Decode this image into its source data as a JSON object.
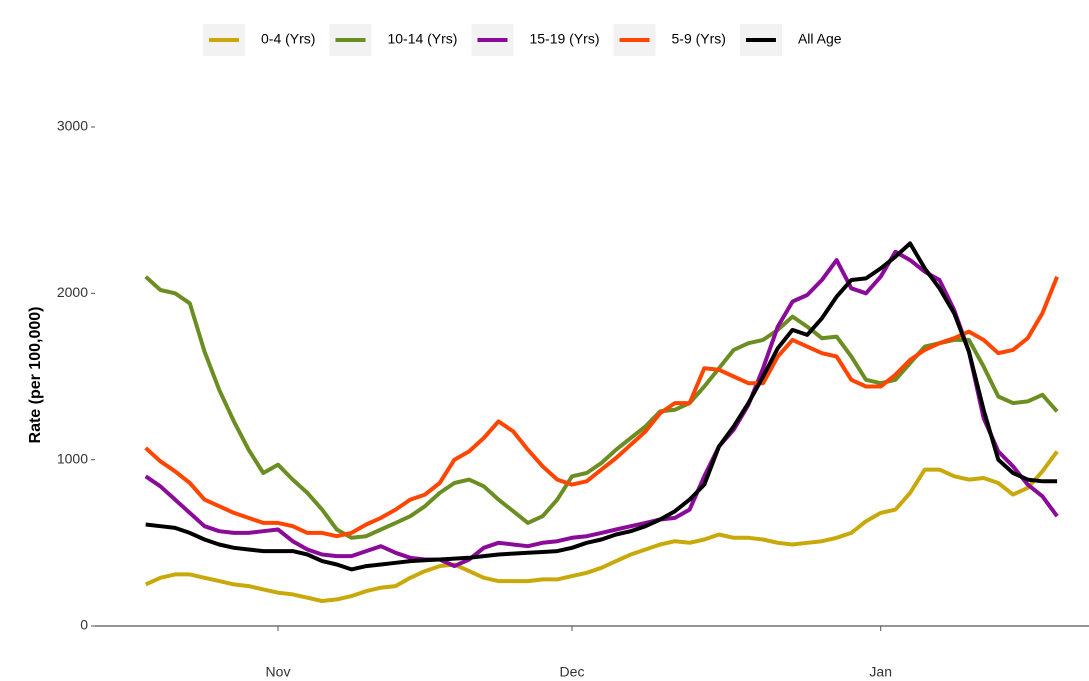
{
  "chart_data": {
    "type": "line",
    "y_label": "Rate (per 100,000)",
    "categories": [
      null,
      null,
      null,
      null,
      null,
      null,
      null,
      null,
      null,
      "Nov",
      null,
      null,
      null,
      null,
      null,
      null,
      null,
      null,
      null,
      null,
      null,
      null,
      null,
      null,
      null,
      null,
      null,
      null,
      null,
      "Dec",
      null,
      null,
      null,
      null,
      null,
      null,
      null,
      null,
      null,
      null,
      null,
      null,
      null,
      null,
      null,
      null,
      null,
      null,
      null,
      null,
      "Jan",
      null,
      null,
      null,
      null,
      null,
      null,
      null,
      null,
      null,
      null,
      null,
      null
    ],
    "ylim": [
      0,
      3000
    ],
    "yticks": [
      0,
      1000,
      2000,
      3000
    ],
    "legend": "top",
    "series": [
      {
        "name": "0-4 (Yrs)",
        "color": "#c9a90a",
        "values": [
          250,
          290,
          310,
          310,
          290,
          270,
          250,
          240,
          220,
          200,
          190,
          170,
          150,
          160,
          180,
          210,
          230,
          240,
          290,
          330,
          360,
          370,
          330,
          290,
          270,
          270,
          270,
          280,
          280,
          300,
          320,
          350,
          390,
          430,
          460,
          490,
          510,
          500,
          520,
          550,
          530,
          530,
          520,
          500,
          490,
          500,
          510,
          530,
          560,
          630,
          680,
          700,
          800,
          940,
          940,
          900,
          880,
          890,
          860,
          790,
          830,
          930,
          1050
        ]
      },
      {
        "name": "10-14 (Yrs)",
        "color": "#6b8e23",
        "values": [
          2100,
          2020,
          2000,
          1940,
          1650,
          1420,
          1230,
          1060,
          920,
          970,
          880,
          800,
          700,
          580,
          530,
          540,
          580,
          620,
          660,
          720,
          800,
          860,
          880,
          840,
          760,
          690,
          620,
          660,
          760,
          900,
          920,
          980,
          1060,
          1130,
          1200,
          1290,
          1300,
          1340,
          1440,
          1550,
          1660,
          1700,
          1720,
          1780,
          1860,
          1800,
          1730,
          1740,
          1620,
          1480,
          1460,
          1480,
          1580,
          1680,
          1700,
          1720,
          1720,
          1560,
          1380,
          1340,
          1350,
          1390,
          1290
        ]
      },
      {
        "name": "15-19 (Yrs)",
        "color": "#8b0a9a",
        "values": [
          900,
          840,
          760,
          680,
          600,
          570,
          560,
          560,
          570,
          580,
          510,
          460,
          430,
          420,
          420,
          450,
          480,
          440,
          410,
          400,
          400,
          360,
          400,
          470,
          500,
          490,
          480,
          500,
          510,
          530,
          540,
          560,
          580,
          600,
          620,
          640,
          650,
          700,
          900,
          1080,
          1180,
          1330,
          1550,
          1800,
          1950,
          1990,
          2080,
          2200,
          2030,
          2000,
          2100,
          2250,
          2200,
          2130,
          2080,
          1900,
          1650,
          1250,
          1050,
          960,
          850,
          780,
          660
        ]
      },
      {
        "name": "5-9 (Yrs)",
        "color": "#ff4500",
        "values": [
          1070,
          990,
          930,
          860,
          760,
          720,
          680,
          650,
          620,
          620,
          600,
          560,
          560,
          540,
          560,
          610,
          650,
          700,
          760,
          790,
          860,
          1000,
          1050,
          1130,
          1230,
          1170,
          1060,
          960,
          880,
          850,
          870,
          940,
          1010,
          1090,
          1170,
          1280,
          1340,
          1340,
          1550,
          1540,
          1500,
          1460,
          1460,
          1620,
          1720,
          1680,
          1640,
          1620,
          1480,
          1440,
          1440,
          1510,
          1600,
          1660,
          1700,
          1730,
          1770,
          1720,
          1640,
          1660,
          1730,
          1880,
          2100
        ]
      },
      {
        "name": "All Age",
        "color": "#000000",
        "values": [
          610,
          600,
          590,
          560,
          520,
          490,
          470,
          460,
          450,
          450,
          450,
          430,
          390,
          370,
          340,
          360,
          370,
          380,
          390,
          395,
          400,
          405,
          410,
          420,
          430,
          435,
          440,
          445,
          450,
          470,
          500,
          520,
          550,
          570,
          600,
          640,
          690,
          760,
          850,
          1080,
          1200,
          1340,
          1500,
          1670,
          1780,
          1750,
          1850,
          1980,
          2080,
          2090,
          2150,
          2220,
          2300,
          2150,
          2030,
          1880,
          1650,
          1300,
          1000,
          920,
          880,
          870,
          870
        ]
      }
    ]
  }
}
